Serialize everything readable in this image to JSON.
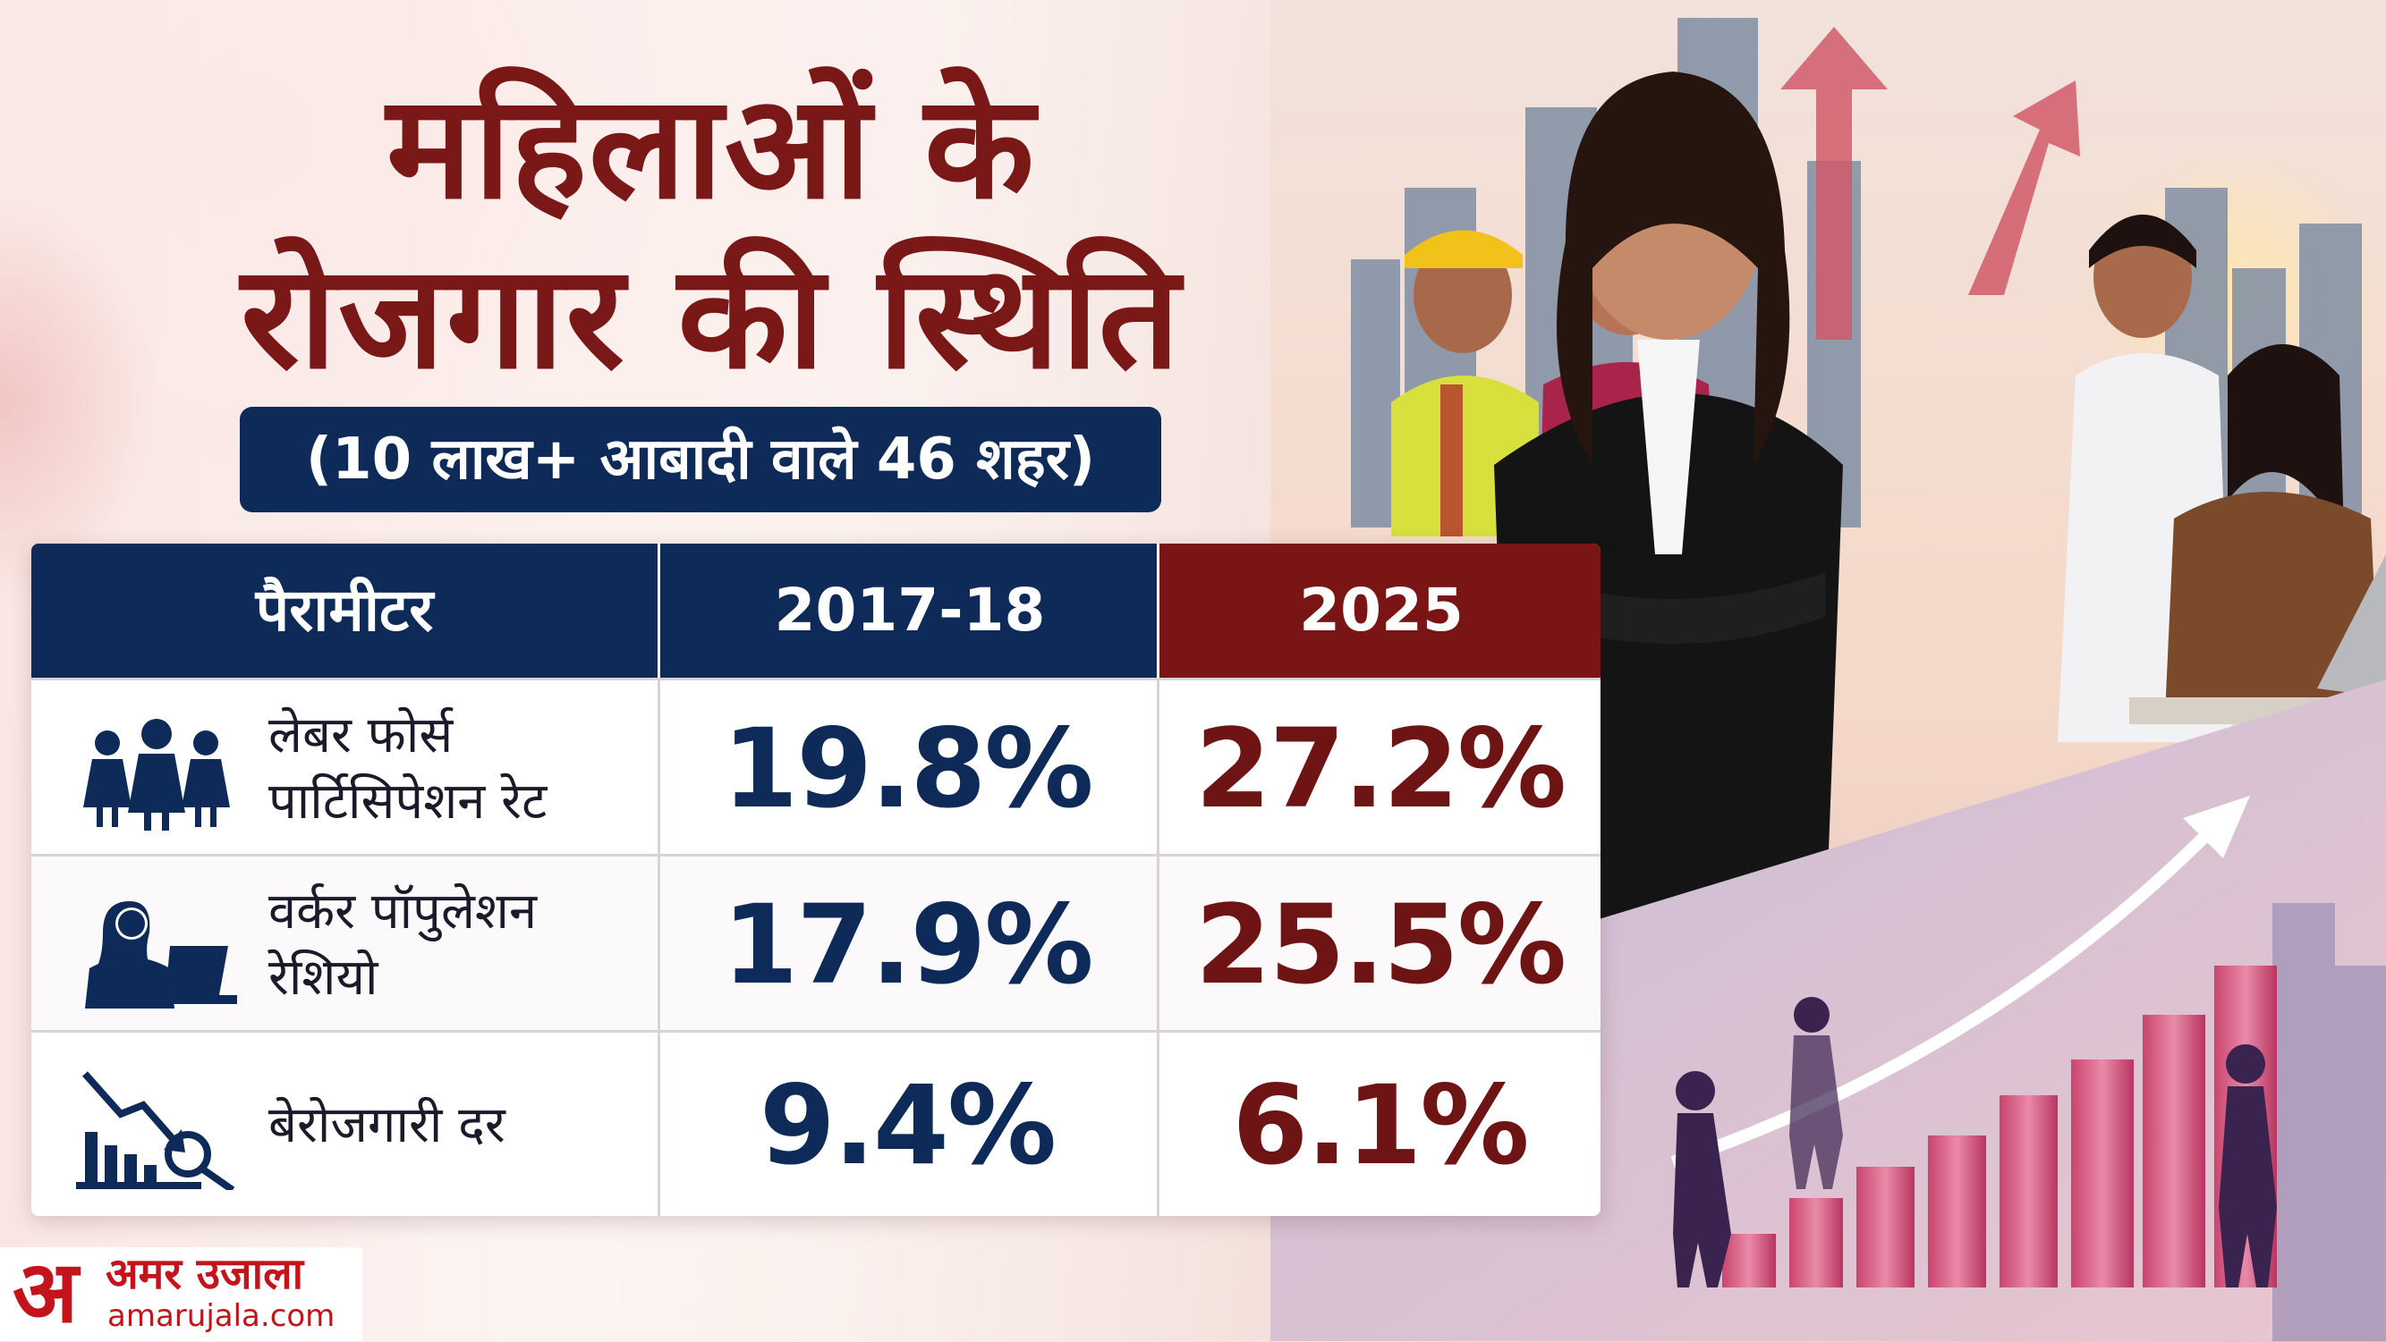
{
  "header": {
    "title_line1": "महिलाओं के",
    "title_line2": "रोजगार की स्थिति",
    "subtitle": "(10 लाख+ आबादी वाले 46 शहर)"
  },
  "table": {
    "headers": [
      "पैरामीटर",
      "2017-18",
      "2025"
    ],
    "rows": [
      {
        "label_line1": "लेबर फोर्स",
        "label_line2": "पार्टिसिपेशन रेट",
        "icon": "women-group-icon",
        "v2017": "19.8%",
        "v2025": "27.2%"
      },
      {
        "label_line1": "वर्कर पॉपुलेशन",
        "label_line2": "रेशियो",
        "icon": "woman-laptop-icon",
        "v2017": "17.9%",
        "v2025": "25.5%"
      },
      {
        "label_line1": "बेरोजगारी दर",
        "label_line2": "",
        "icon": "declining-chart-magnifier-icon",
        "v2017": "9.4%",
        "v2025": "6.1%"
      }
    ]
  },
  "branding": {
    "logo_letter": "अ",
    "logo_name": "अमर उजाला",
    "logo_url": "amarujala.com"
  },
  "illustration": {
    "description_icons": [
      "working-women-group-icon",
      "city-skyline-icon",
      "growth-bar-chart-icon",
      "upward-arrow-icon"
    ]
  },
  "colors": {
    "title": "#7a1717",
    "navy": "#0d2a58",
    "maroon": "#7a1515",
    "logo_red": "#c3141c"
  }
}
